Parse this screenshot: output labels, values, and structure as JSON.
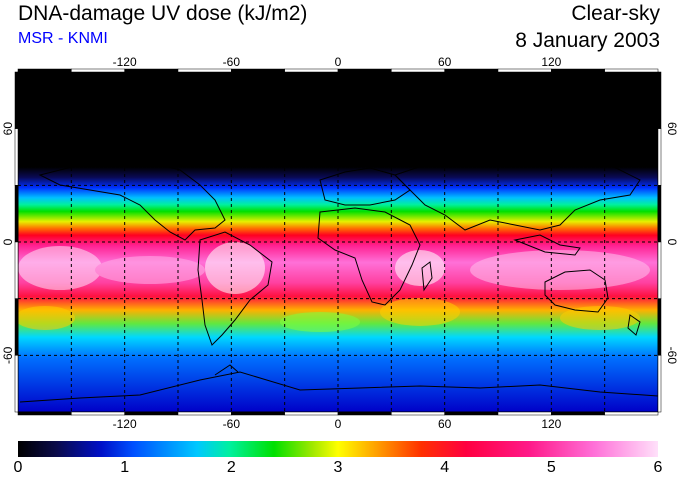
{
  "header": {
    "title": "DNA-damage UV dose (kJ/m2)",
    "source": "MSR - KNMI",
    "source_color": "#0000ff",
    "sky_condition": "Clear-sky",
    "date": "8 January 2003"
  },
  "map": {
    "lon_ticks": [
      "-120",
      "-60",
      "0",
      "60",
      "120"
    ],
    "lat_ticks": [
      "60",
      "0",
      "-60"
    ],
    "lon_range": [
      -180,
      180
    ],
    "lat_range": [
      -90,
      90
    ],
    "grid_lon_step": 30,
    "grid_lat_step": 30
  },
  "colorbar": {
    "labels": [
      "0",
      "1",
      "2",
      "3",
      "4",
      "5",
      "6"
    ],
    "min": 0,
    "max": 6
  }
}
